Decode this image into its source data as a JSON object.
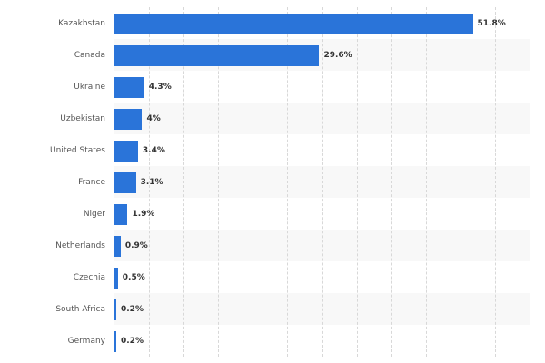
{
  "chart_data": {
    "type": "bar",
    "orientation": "horizontal",
    "title": "",
    "xlabel": "",
    "ylabel": "",
    "categories": [
      "Kazakhstan",
      "Canada",
      "Ukraine",
      "Uzbekistan",
      "United States",
      "France",
      "Niger",
      "Netherlands",
      "Czechia",
      "South Africa",
      "Germany"
    ],
    "values": [
      51.8,
      29.6,
      4.3,
      4,
      3.4,
      3.1,
      1.9,
      0.9,
      0.5,
      0.2,
      0.2
    ],
    "value_labels": [
      "51.8%",
      "29.6%",
      "4.3%",
      "4%",
      "3.4%",
      "3.1%",
      "1.9%",
      "0.9%",
      "0.5%",
      "0.2%",
      "0.2%"
    ],
    "xlim": [
      0,
      60
    ],
    "grid_step": 5,
    "grid": true,
    "legend": false,
    "bar_color": "#2a74d9"
  }
}
